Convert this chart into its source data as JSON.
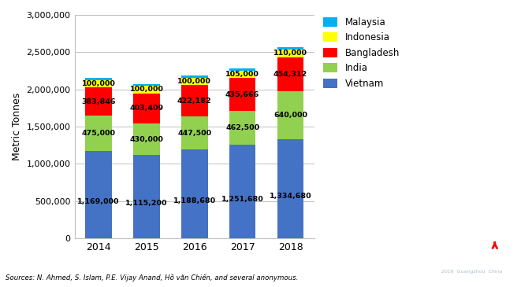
{
  "years": [
    "2014",
    "2015",
    "2016",
    "2017",
    "2018"
  ],
  "vietnam": [
    1169000,
    1115200,
    1188680,
    1251680,
    1334680
  ],
  "india": [
    475000,
    430000,
    447500,
    462500,
    640000
  ],
  "bangladesh": [
    383846,
    403409,
    422182,
    435666,
    454312
  ],
  "indonesia": [
    100000,
    100000,
    100000,
    105000,
    110000
  ],
  "malaysia": [
    25000,
    25000,
    25000,
    25000,
    25000
  ],
  "colors": {
    "vietnam": "#4472C4",
    "india": "#92D050",
    "bangladesh": "#FF0000",
    "indonesia": "#FFFF00",
    "malaysia": "#00B0F0"
  },
  "ylabel": "Metric Tonnes",
  "ylim": [
    0,
    3000000
  ],
  "yticks": [
    0,
    500000,
    1000000,
    1500000,
    2000000,
    2500000,
    3000000
  ],
  "ytick_labels": [
    "0",
    "500,000",
    "1,000,000",
    "1,500,000",
    "2,000,000",
    "2,500,000",
    "3,000,000"
  ],
  "source_text": "Sources: N. Ahmed, S. Islam, P.E. Vijay Anand, Hồ văn Chiến, and several anonymous.",
  "legend_labels": [
    "Malaysia",
    "Indonesia",
    "Bangladesh",
    "India",
    "Vietnam"
  ],
  "bar_width": 0.55,
  "bg_color": "#FFFFFF",
  "grid_color": "#C0C0C0",
  "logo_bg": "#1C3A4A"
}
